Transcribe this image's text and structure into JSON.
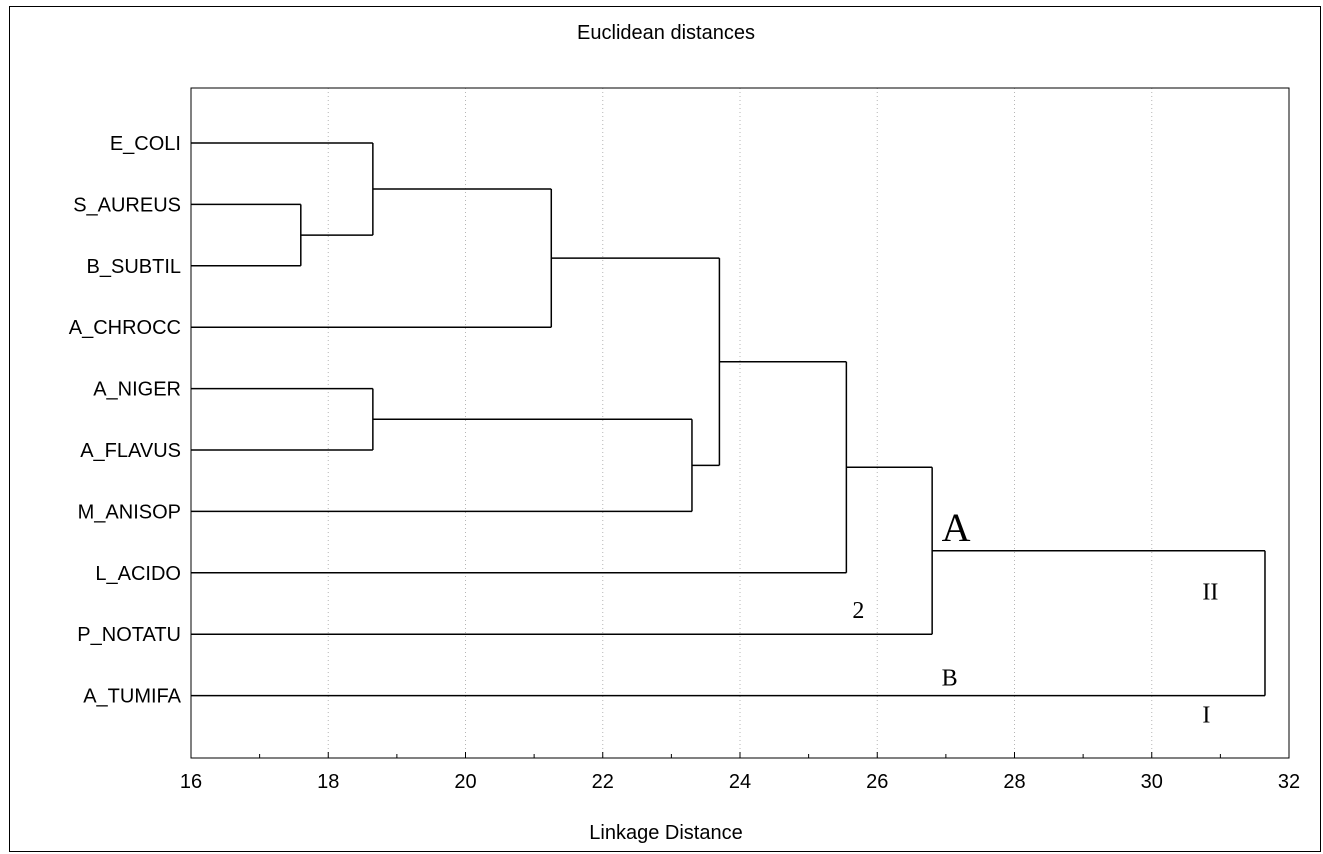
{
  "chart_data": {
    "type": "dendrogram",
    "title": "Euclidean distances",
    "xlabel": "Linkage Distance",
    "xlim": [
      16,
      32
    ],
    "xticks": [
      16,
      18,
      20,
      22,
      24,
      26,
      28,
      30,
      32
    ],
    "grid": "vertical dotted",
    "leaves": [
      "E_COLI",
      "S_AUREUS",
      "B_SUBTIL",
      "A_CHROCC",
      "A_NIGER",
      "A_FLAVUS",
      "M_ANISOP",
      "L_ACIDO",
      "P_NOTATU",
      "A_TUMIFA"
    ],
    "merges": [
      {
        "left": "S_AUREUS",
        "right": "B_SUBTIL",
        "height": 17.6
      },
      {
        "left": "E_COLI",
        "right": "S_AUREUS+B_SUBTIL",
        "height": 18.65
      },
      {
        "left": "A_NIGER",
        "right": "A_FLAVUS",
        "height": 18.65
      },
      {
        "left": "E_COLI+S_AUREUS+B_SUBTIL",
        "right": "A_CHROCC",
        "height": 21.25
      },
      {
        "left": "A_NIGER+A_FLAVUS",
        "right": "M_ANISOP",
        "height": 23.3
      },
      {
        "left": "E_COLI..A_CHROCC",
        "right": "A_NIGER..M_ANISOP",
        "height": 23.7
      },
      {
        "left": "E_COLI..M_ANISOP",
        "right": "L_ACIDO",
        "height": 25.55
      },
      {
        "left": "E_COLI..L_ACIDO",
        "right": "P_NOTATU",
        "height": 26.8
      },
      {
        "left": "E_COLI..P_NOTATU",
        "right": "A_TUMIFA",
        "height": 31.65
      }
    ],
    "annotations": [
      {
        "text": "A",
        "x": 26.85,
        "leaf_pos": 6.25,
        "size": "large"
      },
      {
        "text": "2",
        "x": 25.55,
        "leaf_pos": 7.6,
        "size": "small"
      },
      {
        "text": "B",
        "x": 26.85,
        "leaf_pos": 8.7,
        "size": "small"
      },
      {
        "text": "II",
        "x": 30.65,
        "leaf_pos": 7.3,
        "size": "small"
      },
      {
        "text": "I",
        "x": 30.65,
        "leaf_pos": 9.3,
        "size": "small"
      }
    ]
  }
}
